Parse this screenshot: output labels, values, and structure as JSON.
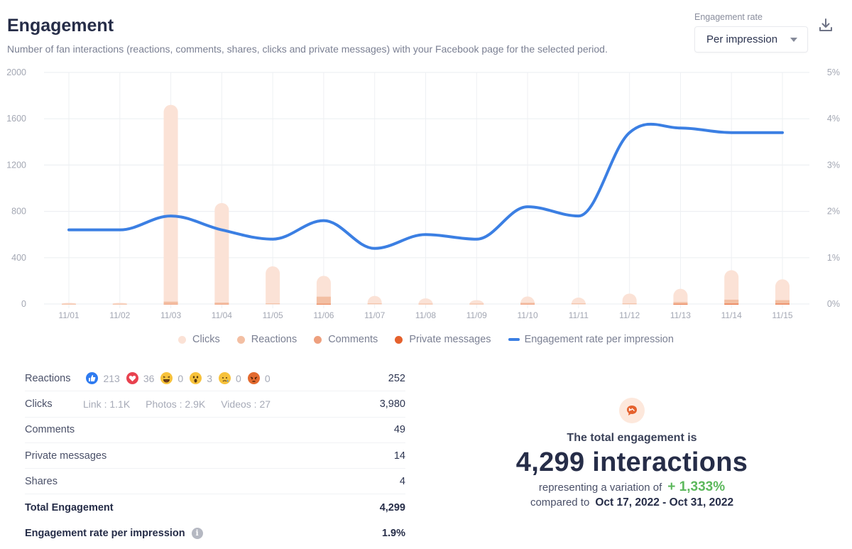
{
  "header": {
    "title": "Engagement",
    "subtitle": "Number of fan interactions (reactions, comments, shares, clicks and private messages) with your Facebook page for the selected period.",
    "rate_label": "Engagement rate",
    "rate_selected": "Per impression",
    "download_icon": "download-icon"
  },
  "colors": {
    "clicks": "#fbe2d6",
    "reactions": "#f3bfa3",
    "comments": "#eea07e",
    "private_messages": "#e5612d",
    "engagement_line": "#3b7fe3",
    "positive_variation": "#5cb85c"
  },
  "chart_data": {
    "type": "bar",
    "title": "Engagement",
    "categories": [
      "11/01",
      "11/02",
      "11/03",
      "11/04",
      "11/05",
      "11/06",
      "11/07",
      "11/08",
      "11/09",
      "11/10",
      "11/11",
      "11/12",
      "11/13",
      "11/14",
      "11/15"
    ],
    "series": [
      {
        "name": "Clicks",
        "type": "bar",
        "values": [
          8,
          8,
          1700,
          860,
          320,
          180,
          65,
          45,
          30,
          55,
          50,
          85,
          115,
          255,
          180
        ]
      },
      {
        "name": "Reactions",
        "type": "bar",
        "values": [
          2,
          2,
          18,
          10,
          5,
          60,
          5,
          3,
          3,
          8,
          5,
          5,
          12,
          30,
          25
        ]
      },
      {
        "name": "Comments",
        "type": "bar",
        "values": [
          0,
          0,
          2,
          2,
          0,
          2,
          0,
          0,
          0,
          2,
          0,
          0,
          3,
          5,
          5
        ]
      },
      {
        "name": "Private messages",
        "type": "bar",
        "values": [
          0,
          0,
          0,
          0,
          0,
          1,
          0,
          0,
          0,
          0,
          0,
          0,
          1,
          2,
          3
        ]
      },
      {
        "name": "Engagement rate per impression",
        "type": "line",
        "axis": "right",
        "values": [
          1.6,
          1.6,
          1.9,
          1.6,
          1.4,
          1.8,
          1.2,
          1.5,
          1.4,
          2.1,
          1.9,
          3.7,
          3.8,
          3.7,
          3.7
        ]
      }
    ],
    "ylim": [
      0,
      2000
    ],
    "yticks": [
      "0",
      "400",
      "800",
      "1200",
      "1600",
      "2000"
    ],
    "ytick_values": [
      0,
      400,
      800,
      1200,
      1600,
      2000
    ],
    "y2lim": [
      0,
      5
    ],
    "y2ticks": [
      "0%",
      "1%",
      "2%",
      "3%",
      "4%",
      "5%"
    ],
    "y2tick_values": [
      0,
      1,
      2,
      3,
      4,
      5
    ],
    "xlabel": "",
    "ylabel": "",
    "grid": true,
    "legend_position": "bottom"
  },
  "legend": [
    {
      "label": "Clicks",
      "kind": "dot",
      "color_key": "clicks"
    },
    {
      "label": "Reactions",
      "kind": "dot",
      "color_key": "reactions"
    },
    {
      "label": "Comments",
      "kind": "dot",
      "color_key": "comments"
    },
    {
      "label": "Private messages",
      "kind": "dot",
      "color_key": "private_messages"
    },
    {
      "label": "Engagement rate per impression",
      "kind": "line",
      "color_key": "engagement_line"
    }
  ],
  "stats": {
    "reactions": {
      "label": "Reactions",
      "value": "252",
      "breakdown": [
        {
          "icon": "like-icon",
          "count": "213"
        },
        {
          "icon": "love-icon",
          "count": "36"
        },
        {
          "icon": "haha-icon",
          "count": "0"
        },
        {
          "icon": "wow-icon",
          "count": "3"
        },
        {
          "icon": "sad-icon",
          "count": "0"
        },
        {
          "icon": "angry-icon",
          "count": "0"
        }
      ]
    },
    "clicks": {
      "label": "Clicks",
      "value": "3,980",
      "breakdown": [
        "Link : 1.1K",
        "Photos : 2.9K",
        "Videos : 27"
      ]
    },
    "comments": {
      "label": "Comments",
      "value": "49"
    },
    "private_messages": {
      "label": "Private messages",
      "value": "14"
    },
    "shares": {
      "label": "Shares",
      "value": "4"
    },
    "total": {
      "label": "Total Engagement",
      "value": "4,299"
    },
    "rate": {
      "label": "Engagement rate per impression",
      "value": "1.9%",
      "info_icon": "i"
    }
  },
  "summary": {
    "lead": "The total engagement is",
    "big": "4,299 interactions",
    "variation_text": "representing a variation of",
    "variation_value": "+ 1,333%",
    "compared_text": "compared to",
    "compared_range": "Oct 17, 2022 - Oct 31, 2022"
  }
}
